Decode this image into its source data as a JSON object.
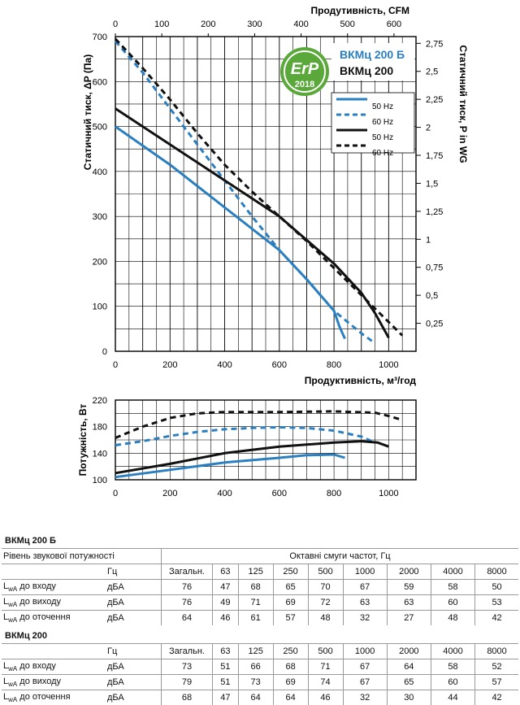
{
  "chart_data": [
    {
      "type": "line",
      "xlabel_top": "Продутивність, CFM",
      "xlabel_bottom": "Продуктивність, м³/год",
      "ylabel_left": "Статичний тиск, ΔP (Па)",
      "ylabel_right": "Статичний тиск,  P in WG",
      "x_ticks_bottom": [
        0,
        200,
        400,
        600,
        800,
        1000
      ],
      "x_ticks_top": [
        0,
        100,
        200,
        300,
        400,
        500,
        600
      ],
      "y_ticks_left": [
        0,
        100,
        200,
        300,
        400,
        500,
        600,
        700
      ],
      "y_ticks_right": [
        "0,25",
        "0,5",
        "0,75",
        "1",
        "1,25",
        "1,5",
        "1,75",
        "2",
        "2,25",
        "2,5",
        "2,75"
      ],
      "xlim": [
        0,
        1100
      ],
      "ylim": [
        0,
        700
      ],
      "grid": true,
      "badge": {
        "top": "ErP",
        "bottom": "2018"
      },
      "model_labels": [
        "ВКМц 200 Б",
        "ВКМц 200"
      ],
      "legend_placement": "top-right",
      "series": [
        {
          "name": "50 Hz",
          "model": "ВКМц 200 Б",
          "color": "#2a7fc1",
          "dash": false,
          "points": [
            [
              0,
              500
            ],
            [
              200,
              415
            ],
            [
              400,
              320
            ],
            [
              600,
              225
            ],
            [
              700,
              160
            ],
            [
              800,
              90
            ],
            [
              820,
              55
            ],
            [
              840,
              28
            ]
          ]
        },
        {
          "name": "60 Hz",
          "model": "ВКМц 200 Б",
          "color": "#2a7fc1",
          "dash": true,
          "points": [
            [
              0,
              690
            ],
            [
              100,
              620
            ],
            [
              200,
              540
            ],
            [
              300,
              460
            ],
            [
              400,
              380
            ],
            [
              500,
              300
            ],
            [
              600,
              225
            ],
            [
              700,
              160
            ],
            [
              800,
              90
            ],
            [
              900,
              40
            ],
            [
              945,
              20
            ]
          ]
        },
        {
          "name": "50 Hz",
          "model": "ВКМц 200",
          "color": "#111111",
          "dash": false,
          "points": [
            [
              0,
              540
            ],
            [
              200,
              460
            ],
            [
              400,
              380
            ],
            [
              600,
              300
            ],
            [
              800,
              195
            ],
            [
              900,
              130
            ],
            [
              950,
              85
            ],
            [
              1000,
              30
            ]
          ]
        },
        {
          "name": "60 Hz",
          "model": "ВКМц 200",
          "color": "#111111",
          "dash": true,
          "points": [
            [
              0,
              695
            ],
            [
              100,
              630
            ],
            [
              200,
              560
            ],
            [
              300,
              485
            ],
            [
              400,
              415
            ],
            [
              500,
              355
            ],
            [
              600,
              300
            ],
            [
              700,
              245
            ],
            [
              800,
              185
            ],
            [
              900,
              125
            ],
            [
              1000,
              65
            ],
            [
              1050,
              35
            ]
          ]
        }
      ]
    },
    {
      "type": "line",
      "ylabel": "Потужність, Вт",
      "x_ticks": [
        0,
        200,
        400,
        600,
        800,
        1000
      ],
      "y_ticks": [
        100,
        140,
        180,
        220
      ],
      "xlim": [
        0,
        1100
      ],
      "ylim": [
        100,
        220
      ],
      "grid": true,
      "series": [
        {
          "name": "50 Hz",
          "model": "ВКМц 200 Б",
          "color": "#2a7fc1",
          "dash": false,
          "points": [
            [
              0,
              104
            ],
            [
              200,
              115
            ],
            [
              400,
              126
            ],
            [
              600,
              133
            ],
            [
              700,
              137
            ],
            [
              800,
              138
            ],
            [
              840,
              133
            ]
          ]
        },
        {
          "name": "60 Hz",
          "model": "ВКМц 200 Б",
          "color": "#2a7fc1",
          "dash": true,
          "points": [
            [
              0,
              152
            ],
            [
              100,
              158
            ],
            [
              200,
              166
            ],
            [
              300,
              172
            ],
            [
              400,
              176
            ],
            [
              500,
              178
            ],
            [
              600,
              179
            ],
            [
              700,
              178
            ],
            [
              800,
              174
            ],
            [
              900,
              165
            ],
            [
              950,
              156
            ]
          ]
        },
        {
          "name": "50 Hz",
          "model": "ВКМц 200",
          "color": "#111111",
          "dash": false,
          "points": [
            [
              0,
              110
            ],
            [
              200,
              124
            ],
            [
              400,
              140
            ],
            [
              600,
              150
            ],
            [
              800,
              156
            ],
            [
              900,
              158
            ],
            [
              960,
              156
            ],
            [
              1000,
              150
            ]
          ]
        },
        {
          "name": "60 Hz",
          "model": "ВКМц 200",
          "color": "#111111",
          "dash": true,
          "points": [
            [
              0,
              163
            ],
            [
              100,
              180
            ],
            [
              200,
              193
            ],
            [
              300,
              200
            ],
            [
              400,
              202
            ],
            [
              600,
              202
            ],
            [
              800,
              203
            ],
            [
              950,
              201
            ],
            [
              1000,
              196
            ],
            [
              1050,
              190
            ]
          ]
        }
      ]
    },
    {
      "type": "table",
      "title": "ВКМц 200 Б",
      "caption_left": "Рівень звукової потужності",
      "caption_right": "Октавні смуги частот, Гц",
      "header": [
        "Гц",
        "Загальн.",
        "63",
        "125",
        "250",
        "500",
        "1000",
        "2000",
        "4000",
        "8000"
      ],
      "rows": [
        {
          "sym": "L",
          "sub": "wA",
          "label": " до входу",
          "unit": "дБА",
          "values": [
            "76",
            "47",
            "68",
            "65",
            "70",
            "67",
            "59",
            "58",
            "50"
          ]
        },
        {
          "sym": "L",
          "sub": "wA",
          "label": " до виходу",
          "unit": "дБА",
          "values": [
            "76",
            "49",
            "71",
            "69",
            "72",
            "63",
            "63",
            "60",
            "53"
          ]
        },
        {
          "sym": "L",
          "sub": "wA",
          "label": " до оточення",
          "unit": "дБА",
          "values": [
            "64",
            "46",
            "61",
            "57",
            "48",
            "32",
            "27",
            "48",
            "42"
          ]
        }
      ]
    },
    {
      "type": "table",
      "title": "ВКМц 200",
      "header": [
        "Гц",
        "Загальн.",
        "63",
        "125",
        "250",
        "500",
        "1000",
        "2000",
        "4000",
        "8000"
      ],
      "rows": [
        {
          "sym": "L",
          "sub": "wA",
          "label": " до входу",
          "unit": "дБА",
          "values": [
            "73",
            "51",
            "66",
            "68",
            "71",
            "67",
            "64",
            "58",
            "52"
          ]
        },
        {
          "sym": "L",
          "sub": "wA",
          "label": " до виходу",
          "unit": "дБА",
          "values": [
            "79",
            "51",
            "73",
            "69",
            "74",
            "67",
            "65",
            "60",
            "57"
          ]
        },
        {
          "sym": "L",
          "sub": "wA",
          "label": " до оточення",
          "unit": "дБА",
          "values": [
            "68",
            "47",
            "64",
            "64",
            "46",
            "32",
            "30",
            "44",
            "42"
          ]
        }
      ]
    }
  ]
}
